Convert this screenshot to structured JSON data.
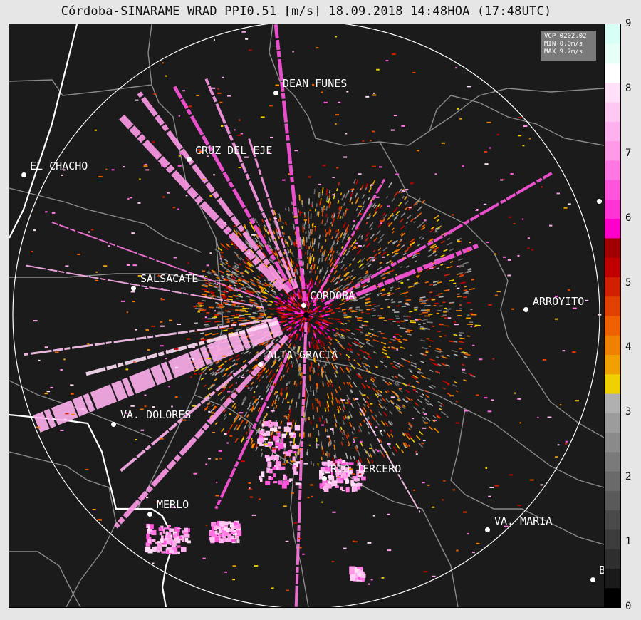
{
  "title": "Córdoba-SINARAME WRAD PPI0.51 [m/s] 18.09.2018 14:48HOA (17:48UTC)",
  "info_box": {
    "vcp": "VCP 0202.02",
    "min": "MIN 0.0m/s",
    "max": "MAX 9.7m/s"
  },
  "cities": [
    {
      "name": "DEAN FUNES"
    },
    {
      "name": "CRUZ DEL EJE"
    },
    {
      "name": "EL CHACHO"
    },
    {
      "name": "SALSACATE"
    },
    {
      "name": "CORDOBA"
    },
    {
      "name": "ARROYITO"
    },
    {
      "name": "ALTA GRACIA"
    },
    {
      "name": "VA. DOLORES"
    },
    {
      "name": "RIO TERCERO"
    },
    {
      "name": "MERLO"
    },
    {
      "name": "VA. MARIA"
    },
    {
      "name": "B"
    }
  ],
  "colorbar": {
    "unit": "m/s",
    "min": 0,
    "max": 9,
    "ticks": [
      "0",
      "1",
      "2",
      "3",
      "4",
      "5",
      "6",
      "7",
      "8",
      "9"
    ],
    "colors": [
      "#000000",
      "#1a1a1a",
      "#2e2e2e",
      "#3c3c3c",
      "#4a4a4a",
      "#5a5a5a",
      "#6a6a6a",
      "#7a7a7a",
      "#8a8a8a",
      "#9c9c9c",
      "#b0b0b0",
      "#f0d000",
      "#f0a000",
      "#f08000",
      "#ef6000",
      "#e04000",
      "#d02000",
      "#c00000",
      "#a00000",
      "#ff00cc",
      "#ff33d6",
      "#ff55dd",
      "#ff77e2",
      "#ff99e8",
      "#ffb0ee",
      "#ffc8f3",
      "#ffe0f8",
      "#ffffff",
      "#e8fff8",
      "#d8fff6"
    ]
  },
  "colors": {
    "map_background": "#1b1b1b",
    "borders": "#8a8a8a",
    "range_ring": "#ffffff"
  }
}
